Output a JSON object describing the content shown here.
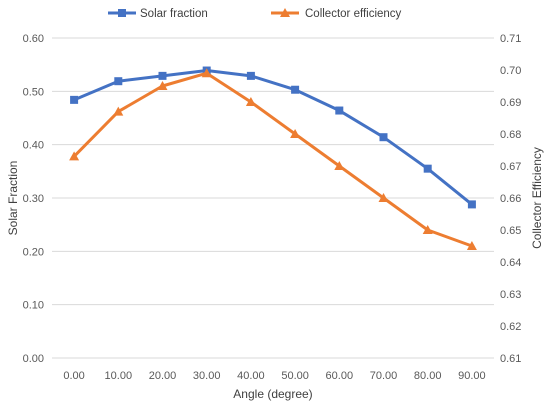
{
  "chart_data": {
    "type": "line",
    "x": [
      "0.00",
      "10.00",
      "20.00",
      "30.00",
      "40.00",
      "50.00",
      "60.00",
      "70.00",
      "80.00",
      "90.00"
    ],
    "series": [
      {
        "name": "Solar fraction",
        "axis": "left",
        "color": "#4472C4",
        "marker": "square",
        "values": [
          0.484,
          0.519,
          0.529,
          0.539,
          0.529,
          0.503,
          0.464,
          0.414,
          0.355,
          0.288
        ]
      },
      {
        "name": "Collector efficiency",
        "axis": "right",
        "color": "#ED7D31",
        "marker": "triangle",
        "values": [
          0.673,
          0.687,
          0.695,
          0.699,
          0.69,
          0.68,
          0.67,
          0.66,
          0.65,
          0.645
        ]
      }
    ],
    "xlabel": "Angle (degree)",
    "ylabel": "Solar Fraction",
    "y2label": "Collector Efficiency",
    "ylim": [
      0,
      0.6
    ],
    "y2lim": [
      0.61,
      0.71
    ],
    "yticks": [
      "0.00",
      "0.10",
      "0.20",
      "0.30",
      "0.40",
      "0.50",
      "0.60"
    ],
    "y2ticks": [
      "0.61",
      "0.62",
      "0.63",
      "0.64",
      "0.65",
      "0.66",
      "0.67",
      "0.68",
      "0.69",
      "0.70",
      "0.71"
    ],
    "grid": true,
    "legend": "top-center"
  }
}
